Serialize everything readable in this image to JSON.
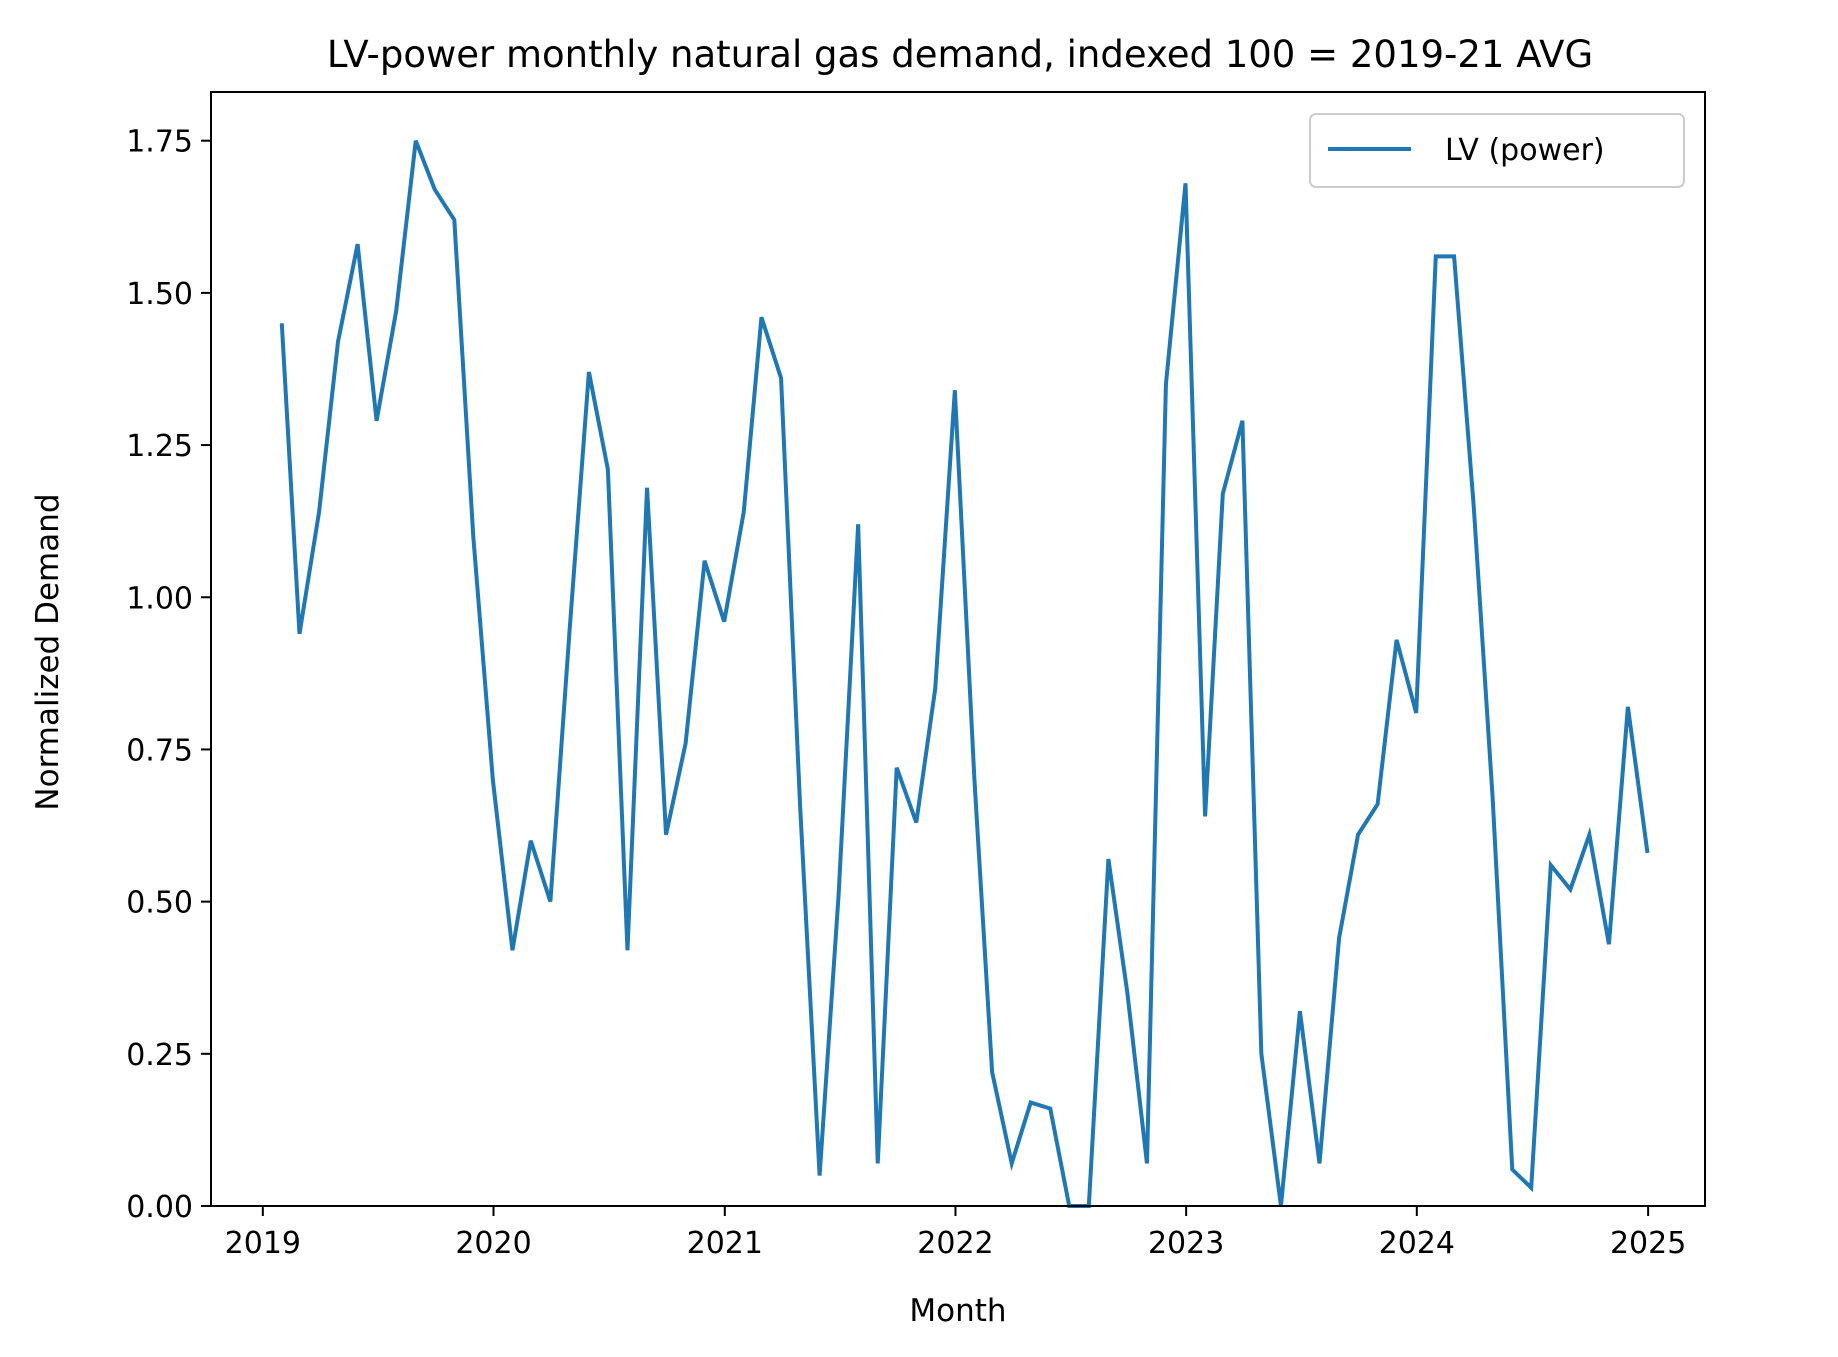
{
  "chart_data": {
    "type": "line",
    "title": "LV-power monthly natural gas demand, indexed 100 = 2019-21 AVG",
    "xlabel": "Month",
    "ylabel": "Normalized Demand",
    "xlim": [
      "2018-10-11",
      "2025-04-01"
    ],
    "ylim": [
      0,
      1.83
    ],
    "x_ticks": [
      "2019",
      "2020",
      "2021",
      "2022",
      "2023",
      "2024",
      "2025"
    ],
    "y_ticks": [
      "0.00",
      "0.25",
      "0.50",
      "0.75",
      "1.00",
      "1.25",
      "1.50",
      "1.75"
    ],
    "grid": false,
    "legend": "top-right",
    "x": [
      "2019-01",
      "2019-02",
      "2019-03",
      "2019-04",
      "2019-05",
      "2019-06",
      "2019-07",
      "2019-08",
      "2019-09",
      "2019-10",
      "2019-11",
      "2019-12",
      "2020-01",
      "2020-02",
      "2020-03",
      "2020-04",
      "2020-05",
      "2020-06",
      "2020-07",
      "2020-08",
      "2020-09",
      "2020-10",
      "2020-11",
      "2020-12",
      "2021-01",
      "2021-02",
      "2021-03",
      "2021-04",
      "2021-05",
      "2021-06",
      "2021-07",
      "2021-08",
      "2021-09",
      "2021-10",
      "2021-11",
      "2021-12",
      "2022-01",
      "2022-02",
      "2022-03",
      "2022-04",
      "2022-05",
      "2022-06",
      "2022-07",
      "2022-08",
      "2022-09",
      "2022-10",
      "2022-11",
      "2022-12",
      "2023-01",
      "2023-02",
      "2023-03",
      "2023-04",
      "2023-05",
      "2023-06",
      "2023-07",
      "2023-08",
      "2023-09",
      "2023-10",
      "2023-11",
      "2023-12",
      "2024-01",
      "2024-02",
      "2024-03",
      "2024-04",
      "2024-05",
      "2024-06",
      "2024-07",
      "2024-08",
      "2024-09",
      "2024-10",
      "2024-11",
      "2024-12"
    ],
    "series": [
      {
        "name": "LV (power)",
        "color": "#1f77b4",
        "values": [
          1.45,
          0.94,
          1.14,
          1.42,
          1.58,
          1.29,
          1.47,
          1.75,
          1.67,
          1.62,
          1.1,
          0.7,
          0.42,
          0.6,
          0.5,
          0.94,
          1.37,
          1.21,
          0.42,
          1.18,
          0.61,
          0.76,
          1.06,
          0.96,
          1.14,
          1.46,
          1.36,
          0.66,
          0.05,
          0.51,
          1.12,
          0.07,
          0.72,
          0.63,
          0.85,
          1.34,
          0.7,
          0.22,
          0.07,
          0.17,
          0.16,
          0.0,
          0.0,
          0.57,
          0.35,
          0.07,
          1.35,
          1.68,
          0.64,
          1.17,
          1.29,
          0.25,
          0.0,
          0.32,
          0.07,
          0.44,
          0.61,
          0.66,
          0.93,
          0.81,
          1.56,
          1.56,
          1.15,
          0.67,
          0.06,
          0.03,
          0.56,
          0.52,
          0.61,
          0.43,
          0.82,
          0.58
        ]
      }
    ]
  }
}
